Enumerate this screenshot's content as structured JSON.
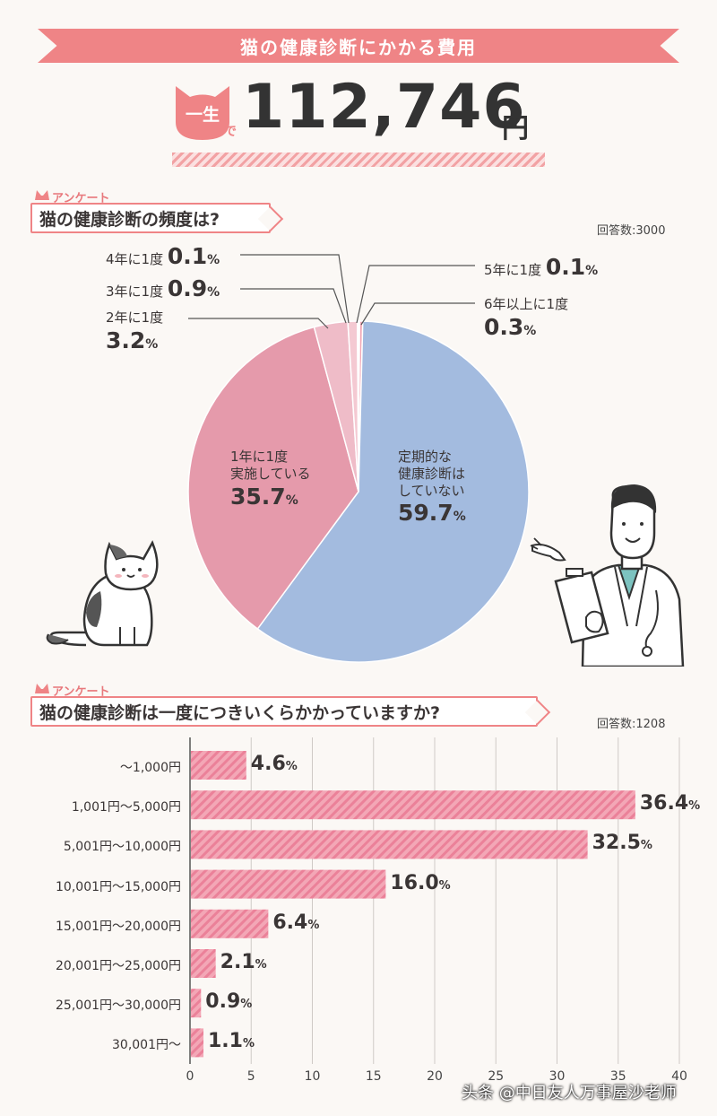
{
  "header": {
    "title": "猫の健康診断にかかる費用",
    "badge": "一生",
    "badge_suffix": "で",
    "total": "112,746",
    "unit": "円"
  },
  "survey1": {
    "tag": "アンケート",
    "question": "猫の健康診断の頻度は?",
    "respondents": "回答数:3000",
    "colors": {
      "blue": "#a3bbdf",
      "pink": "#e59aab",
      "light_pink": "#efbcc8",
      "pale_pink": "#f6d6dd"
    }
  },
  "survey2": {
    "tag": "アンケート",
    "question": "猫の健康診断は一度につきいくらかかっていますか?",
    "respondents": "回答数:1208"
  },
  "watermark": "头条 @中日友人万事屋沙老师",
  "chart_data": [
    {
      "type": "pie",
      "title": "猫の健康診断の頻度は?",
      "slices": [
        {
          "label": "定期的な健康診断はしていない",
          "value": 59.7,
          "color": "#a3bbdf"
        },
        {
          "label": "1年に1度実施している",
          "value": 35.7,
          "color": "#e59aab"
        },
        {
          "label": "2年に1度",
          "value": 3.2,
          "color": "#efbcc8"
        },
        {
          "label": "3年に1度",
          "value": 0.9,
          "color": "#f4c9d2"
        },
        {
          "label": "4年に1度",
          "value": 0.1,
          "color": "#f6d6dd"
        },
        {
          "label": "5年に1度",
          "value": 0.1,
          "color": "#f0b3c0"
        },
        {
          "label": "6年以上に1度",
          "value": 0.3,
          "color": "#f2a6b4"
        }
      ],
      "labels_display": {
        "s0": [
          "定期的な",
          "健康診断は",
          "していない"
        ],
        "v0": "59.7",
        "s1": [
          "1年に1度",
          "実施している"
        ],
        "v1": "35.7",
        "s2": "2年に1度",
        "v2": "3.2",
        "s3": "3年に1度",
        "v3": "0.9",
        "s4": "4年に1度",
        "v4": "0.1",
        "s5": "5年に1度",
        "v5": "0.1",
        "s6": "6年以上に1度",
        "v6": "0.3",
        "pct": "%"
      }
    },
    {
      "type": "bar",
      "orientation": "horizontal",
      "title": "猫の健康診断は一度につきいくらかかっていますか?",
      "categories": [
        "〜1,000円",
        "1,001円〜5,000円",
        "5,001円〜10,000円",
        "10,001円〜15,000円",
        "15,001円〜20,000円",
        "20,001円〜25,000円",
        "25,001円〜30,000円",
        "30,001円〜"
      ],
      "values": [
        4.6,
        36.4,
        32.5,
        16.0,
        6.4,
        2.1,
        0.9,
        1.1
      ],
      "value_labels": [
        "4.6",
        "36.4",
        "32.5",
        "16.0",
        "6.4",
        "2.1",
        "0.9",
        "1.1"
      ],
      "pct": "%",
      "xlim": [
        0,
        40
      ],
      "xticks": [
        0,
        5,
        10,
        15,
        20,
        25,
        30,
        35,
        40
      ],
      "grid": true,
      "color": "#ef8ea2"
    }
  ]
}
